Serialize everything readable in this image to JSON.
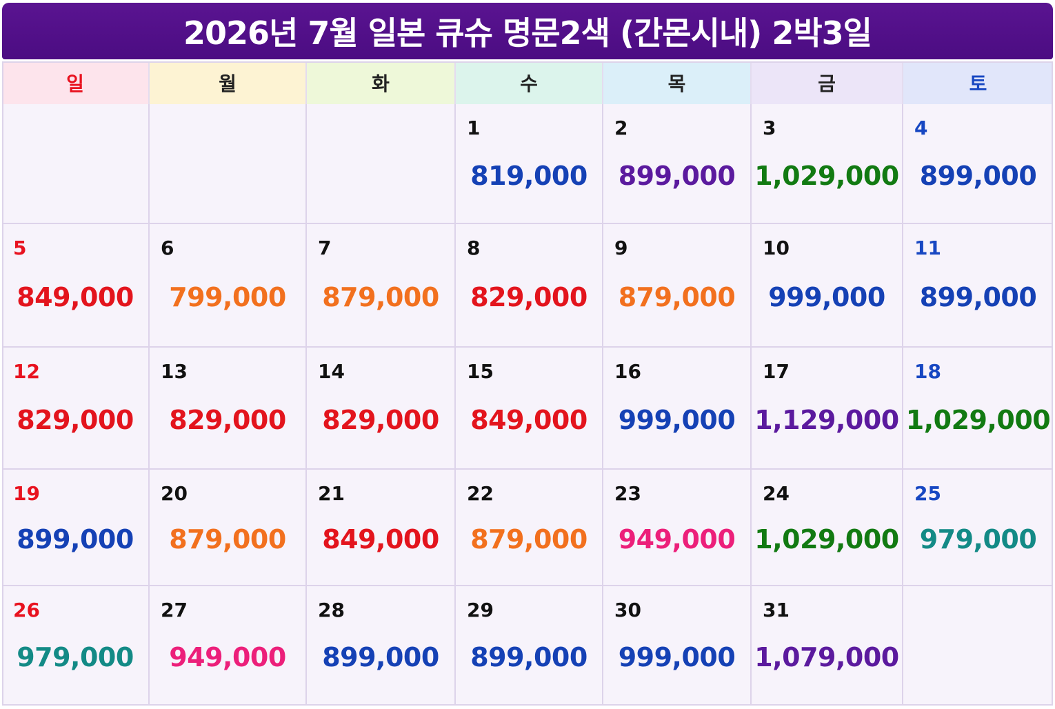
{
  "title": "2026년 7월 일본 큐슈 명문2색 (간몬시내) 2박3일",
  "colors": {
    "sunday": "#e8121f",
    "saturday": "#1747c2",
    "weekday_text": "#222222",
    "price": {
      "blue": "#1541b5",
      "purple": "#5b1a9e",
      "green": "#127a12",
      "red": "#e3141d",
      "orange": "#f2701e",
      "pink": "#ec1f7a",
      "teal": "#138a86"
    }
  },
  "weekdays": [
    {
      "label": "일",
      "bg": "#fde4ec",
      "color": "#e8121f"
    },
    {
      "label": "월",
      "bg": "#fdf3d3",
      "color": "#222222"
    },
    {
      "label": "화",
      "bg": "#eef8d9",
      "color": "#222222"
    },
    {
      "label": "수",
      "bg": "#dcf4ec",
      "color": "#222222"
    },
    {
      "label": "목",
      "bg": "#dbeff9",
      "color": "#222222"
    },
    {
      "label": "금",
      "bg": "#ece5f8",
      "color": "#222222"
    },
    {
      "label": "토",
      "bg": "#e1e6fa",
      "color": "#1747c2"
    }
  ],
  "weeks": [
    [
      null,
      null,
      null,
      {
        "day": "1",
        "price": "819,000",
        "color": "blue"
      },
      {
        "day": "2",
        "price": "899,000",
        "color": "purple"
      },
      {
        "day": "3",
        "price": "1,029,000",
        "color": "green"
      },
      {
        "day": "4",
        "price": "899,000",
        "color": "blue"
      }
    ],
    [
      {
        "day": "5",
        "price": "849,000",
        "color": "red"
      },
      {
        "day": "6",
        "price": "799,000",
        "color": "orange"
      },
      {
        "day": "7",
        "price": "879,000",
        "color": "orange"
      },
      {
        "day": "8",
        "price": "829,000",
        "color": "red"
      },
      {
        "day": "9",
        "price": "879,000",
        "color": "orange"
      },
      {
        "day": "10",
        "price": "999,000",
        "color": "blue"
      },
      {
        "day": "11",
        "price": "899,000",
        "color": "blue"
      }
    ],
    [
      {
        "day": "12",
        "price": "829,000",
        "color": "red"
      },
      {
        "day": "13",
        "price": "829,000",
        "color": "red"
      },
      {
        "day": "14",
        "price": "829,000",
        "color": "red"
      },
      {
        "day": "15",
        "price": "849,000",
        "color": "red"
      },
      {
        "day": "16",
        "price": "999,000",
        "color": "blue"
      },
      {
        "day": "17",
        "price": "1,129,000",
        "color": "purple"
      },
      {
        "day": "18",
        "price": "1,029,000",
        "color": "green"
      }
    ],
    [
      {
        "day": "19",
        "price": "899,000",
        "color": "blue"
      },
      {
        "day": "20",
        "price": "879,000",
        "color": "orange"
      },
      {
        "day": "21",
        "price": "849,000",
        "color": "red"
      },
      {
        "day": "22",
        "price": "879,000",
        "color": "orange"
      },
      {
        "day": "23",
        "price": "949,000",
        "color": "pink"
      },
      {
        "day": "24",
        "price": "1,029,000",
        "color": "green"
      },
      {
        "day": "25",
        "price": "979,000",
        "color": "teal"
      }
    ],
    [
      {
        "day": "26",
        "price": "979,000",
        "color": "teal"
      },
      {
        "day": "27",
        "price": "949,000",
        "color": "pink"
      },
      {
        "day": "28",
        "price": "899,000",
        "color": "blue"
      },
      {
        "day": "29",
        "price": "899,000",
        "color": "blue"
      },
      {
        "day": "30",
        "price": "999,000",
        "color": "blue"
      },
      {
        "day": "31",
        "price": "1,079,000",
        "color": "purple"
      },
      null
    ]
  ]
}
